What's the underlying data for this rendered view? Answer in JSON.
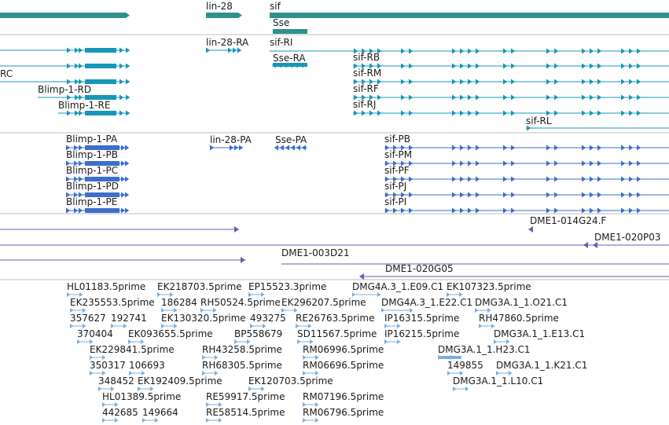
{
  "colors": {
    "gene": "#2f8f8f",
    "transcript": "#1797b8",
    "protein": "#3a6fcc",
    "clone": "#7456b0",
    "est": "#78b0e0",
    "divider": "#bdbdbd"
  },
  "tracks": {
    "genes": {
      "labels": [
        {
          "id": "gene-lin-28",
          "text": "lin-28"
        },
        {
          "id": "gene-sif",
          "text": "sif"
        },
        {
          "id": "gene-sse",
          "text": "Sse"
        }
      ]
    },
    "transcripts": {
      "labels": [
        {
          "id": "tx-lin-28-ra",
          "text": "lin-28-RA"
        },
        {
          "id": "tx-sif-ri",
          "text": "sif-RI"
        },
        {
          "id": "tx-sse-ra",
          "text": "Sse-RA"
        },
        {
          "id": "tx-sif-rb",
          "text": "sif-RB"
        },
        {
          "id": "tx-rc",
          "text": "RC"
        },
        {
          "id": "tx-sif-rm",
          "text": "sif-RM"
        },
        {
          "id": "tx-blimp-1-rd",
          "text": "Blimp-1-RD"
        },
        {
          "id": "tx-sif-rf",
          "text": "sif-RF"
        },
        {
          "id": "tx-blimp-1-re",
          "text": "Blimp-1-RE"
        },
        {
          "id": "tx-sif-rj",
          "text": "sif-RJ"
        },
        {
          "id": "tx-sif-rl",
          "text": "sif-RL"
        }
      ]
    },
    "proteins": {
      "labels": [
        {
          "id": "pp-blimp-1-pa",
          "text": "Blimp-1-PA"
        },
        {
          "id": "pp-lin-28-pa",
          "text": "lin-28-PA"
        },
        {
          "id": "pp-sse-pa",
          "text": "Sse-PA"
        },
        {
          "id": "pp-sif-pb",
          "text": "sif-PB"
        },
        {
          "id": "pp-blimp-1-pb",
          "text": "Blimp-1-PB"
        },
        {
          "id": "pp-sif-pm",
          "text": "sif-PM"
        },
        {
          "id": "pp-blimp-1-pc",
          "text": "Blimp-1-PC"
        },
        {
          "id": "pp-sif-pf",
          "text": "sif-PF"
        },
        {
          "id": "pp-blimp-1-pd",
          "text": "Blimp-1-PD"
        },
        {
          "id": "pp-sif-pj",
          "text": "sif-PJ"
        },
        {
          "id": "pp-blimp-1-pe",
          "text": "Blimp-1-PE"
        },
        {
          "id": "pp-sif-pi",
          "text": "sif-PI"
        }
      ]
    },
    "clones": {
      "labels": [
        {
          "id": "clone-dme1-014g24-f",
          "text": "DME1-014G24.F"
        },
        {
          "id": "clone-dme1-020p03",
          "text": "DME1-020P03"
        },
        {
          "id": "clone-dme1-003d21",
          "text": "DME1-003D21"
        },
        {
          "id": "clone-dme1-020g05",
          "text": "DME1-020G05"
        }
      ]
    },
    "ests": {
      "labels": [
        {
          "id": "est-hl01183-5prime",
          "text": "HL01183.5prime"
        },
        {
          "id": "est-ek218703-5prime",
          "text": "EK218703.5prime"
        },
        {
          "id": "est-ep15523-3prime",
          "text": "EP15523.3prime"
        },
        {
          "id": "est-dmg4a-3-1-e09-c1",
          "text": "DMG4A.3_1.E09.C1"
        },
        {
          "id": "est-ek107323-5prime",
          "text": "EK107323.5prime"
        },
        {
          "id": "est-ek235553-5prime",
          "text": "EK235553.5prime"
        },
        {
          "id": "est-186284",
          "text": "186284"
        },
        {
          "id": "est-rh50524-5prime",
          "text": "RH50524.5prime"
        },
        {
          "id": "est-ek296207-5prime",
          "text": "EK296207.5prime"
        },
        {
          "id": "est-dmg4a-3-1-e22-c1",
          "text": "DMG4A.3_1.E22.C1"
        },
        {
          "id": "est-dmg3a-1-1-o21-c1",
          "text": "DMG3A.1_1.O21.C1"
        },
        {
          "id": "est-357627",
          "text": "357627"
        },
        {
          "id": "est-192741",
          "text": "192741"
        },
        {
          "id": "est-ek130320-5prime",
          "text": "EK130320.5prime"
        },
        {
          "id": "est-493275",
          "text": "493275"
        },
        {
          "id": "est-re26763-5prime",
          "text": "RE26763.5prime"
        },
        {
          "id": "est-ip16315-5prime",
          "text": "IP16315.5prime"
        },
        {
          "id": "est-rh47860-5prime",
          "text": "RH47860.5prime"
        },
        {
          "id": "est-370404",
          "text": "370404"
        },
        {
          "id": "est-ek093655-5prime",
          "text": "EK093655.5prime"
        },
        {
          "id": "est-bp558679",
          "text": "BP558679"
        },
        {
          "id": "est-sd11567-5prime",
          "text": "SD11567.5prime"
        },
        {
          "id": "est-ip16215-5prime",
          "text": "IP16215.5prime"
        },
        {
          "id": "est-dmg3a-1-1-e13-c1",
          "text": "DMG3A.1_1.E13.C1"
        },
        {
          "id": "est-ek229841-5prime",
          "text": "EK229841.5prime"
        },
        {
          "id": "est-rh43258-5prime",
          "text": "RH43258.5prime"
        },
        {
          "id": "est-rm06996-5prime",
          "text": "RM06996.5prime"
        },
        {
          "id": "est-dmg3a-1-1-h23-c1",
          "text": "DMG3A.1_1.H23.C1"
        },
        {
          "id": "est-350317",
          "text": "350317"
        },
        {
          "id": "est-106693",
          "text": "106693"
        },
        {
          "id": "est-rh68305-5prime",
          "text": "RH68305.5prime"
        },
        {
          "id": "est-rm06696-5prime",
          "text": "RM06696.5prime"
        },
        {
          "id": "est-149855",
          "text": "149855"
        },
        {
          "id": "est-dmg3a-1-1-k21-c1",
          "text": "DMG3A.1_1.K21.C1"
        },
        {
          "id": "est-348452",
          "text": "348452"
        },
        {
          "id": "est-ek192409-5prime",
          "text": "EK192409.5prime"
        },
        {
          "id": "est-ek120703-5prime",
          "text": "EK120703.5prime"
        },
        {
          "id": "est-dmg3a-1-1-l10-c1",
          "text": "DMG3A.1_1.L10.C1"
        },
        {
          "id": "est-hl01389-5prime",
          "text": "HL01389.5prime"
        },
        {
          "id": "est-re59917-5prime",
          "text": "RE59917.5prime"
        },
        {
          "id": "est-rm07196-5prime",
          "text": "RM07196.5prime"
        },
        {
          "id": "est-442685",
          "text": "442685"
        },
        {
          "id": "est-149664",
          "text": "149664"
        },
        {
          "id": "est-re58514-5prime",
          "text": "RE58514.5prime"
        },
        {
          "id": "est-rm06796-5prime",
          "text": "RM06796.5prime"
        }
      ]
    }
  }
}
